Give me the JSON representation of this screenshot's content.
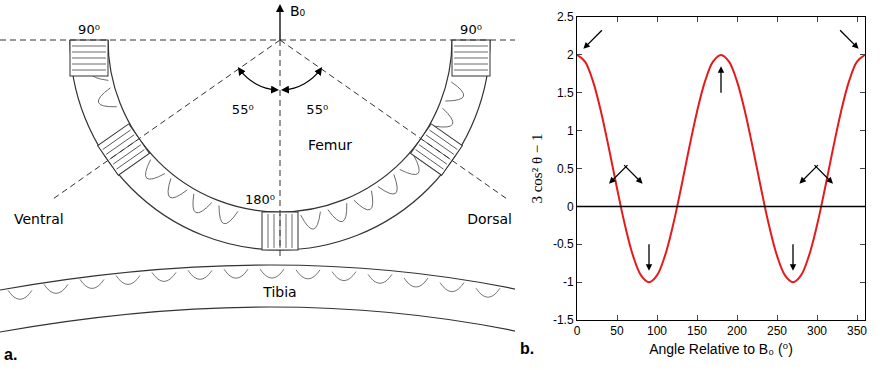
{
  "diagram": {
    "letter": "a.",
    "field_label": "B₀",
    "perpendicular": {
      "value": 90,
      "label": "90⁰"
    },
    "magic_angle": {
      "value": 55,
      "label": "55⁰"
    },
    "parallel": {
      "value": 180,
      "label": "180⁰"
    },
    "femur": "Femur",
    "tibia": "Tibia",
    "ventral": "Ventral",
    "dorsal": "Dorsal"
  },
  "chart_data": {
    "type": "line",
    "panel_label": "b.",
    "x_label": "Angle Relative to B₀ (⁰)",
    "y_label": "3 cos² θ − 1",
    "x": [
      0,
      10,
      20,
      30,
      40,
      50,
      60,
      70,
      80,
      90,
      100,
      110,
      120,
      130,
      140,
      150,
      160,
      170,
      180,
      190,
      200,
      210,
      220,
      230,
      240,
      250,
      260,
      270,
      280,
      290,
      300,
      310,
      320,
      330,
      340,
      350,
      360
    ],
    "values": [
      2,
      1.91,
      1.65,
      1.25,
      0.76,
      0.24,
      -0.25,
      -0.65,
      -0.91,
      -1,
      -0.91,
      -0.65,
      -0.25,
      0.24,
      0.76,
      1.25,
      1.65,
      1.91,
      2,
      1.91,
      1.65,
      1.25,
      0.76,
      0.24,
      -0.25,
      -0.65,
      -0.91,
      -1,
      -0.91,
      -0.65,
      -0.25,
      0.24,
      0.76,
      1.25,
      1.65,
      1.91,
      2
    ],
    "color": "#e41a1c",
    "xlim": [
      0,
      360
    ],
    "xticks": [
      0,
      50,
      100,
      150,
      200,
      250,
      300,
      350
    ],
    "ylim": [
      -1.5,
      2.5
    ],
    "yticks": [
      -1.5,
      -1,
      -0.5,
      0,
      0.5,
      1,
      1.5,
      2,
      2.5
    ],
    "grid": false,
    "reference_line": 0,
    "arrows": [
      {
        "x": 8,
        "y": 2.08,
        "direction": "down-left"
      },
      {
        "x": 352,
        "y": 2.08,
        "direction": "down-right"
      },
      {
        "x": 180,
        "y": 1.85,
        "direction": "up"
      },
      {
        "x": 90,
        "y": -0.85,
        "direction": "down"
      },
      {
        "x": 270,
        "y": -0.85,
        "direction": "down"
      },
      {
        "x": 40,
        "y": 0.3,
        "direction": "down-left"
      },
      {
        "x": 82,
        "y": 0.3,
        "direction": "down-right"
      },
      {
        "x": 278,
        "y": 0.3,
        "direction": "down-left"
      },
      {
        "x": 320,
        "y": 0.3,
        "direction": "down-right"
      }
    ]
  }
}
